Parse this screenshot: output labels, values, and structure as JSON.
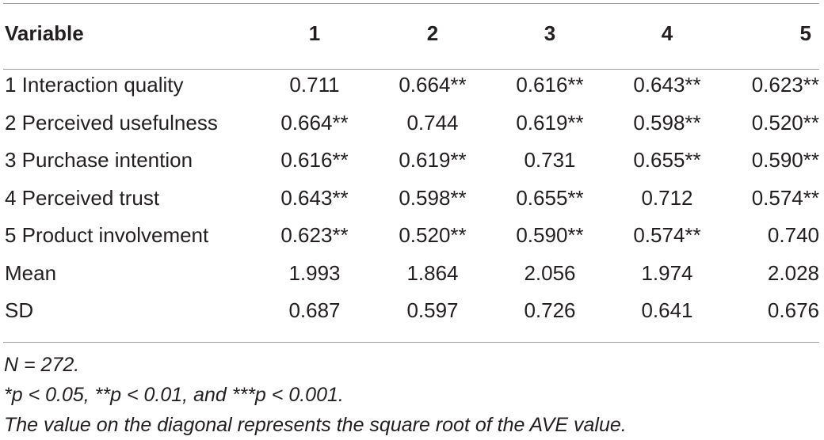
{
  "table": {
    "headers": [
      "Variable",
      "1",
      "2",
      "3",
      "4",
      "5"
    ],
    "rows": [
      {
        "label": "1 Interaction quality",
        "values": [
          "0.711",
          "0.664**",
          "0.616**",
          "0.643**",
          "0.623**"
        ]
      },
      {
        "label": "2 Perceived usefulness",
        "values": [
          "0.664**",
          "0.744",
          "0.619**",
          "0.598**",
          "0.520**"
        ]
      },
      {
        "label": "3 Purchase intention",
        "values": [
          "0.616**",
          "0.619**",
          "0.731",
          "0.655**",
          "0.590**"
        ]
      },
      {
        "label": "4 Perceived trust",
        "values": [
          "0.643**",
          "0.598**",
          "0.655**",
          "0.712",
          "0.574**"
        ]
      },
      {
        "label": "5 Product involvement",
        "values": [
          "0.623**",
          "0.520**",
          "0.590**",
          "0.574**",
          "0.740"
        ]
      },
      {
        "label": "Mean",
        "values": [
          "1.993",
          "1.864",
          "2.056",
          "1.974",
          "2.028"
        ]
      },
      {
        "label": "SD",
        "values": [
          "0.687",
          "0.597",
          "0.726",
          "0.641",
          "0.676"
        ]
      }
    ]
  },
  "notes": {
    "n": "N = 272.",
    "significance": "*p < 0.05, **p < 0.01, and ***p < 0.001.",
    "diagonal": "The value on the diagonal represents the square root of the AVE value."
  }
}
